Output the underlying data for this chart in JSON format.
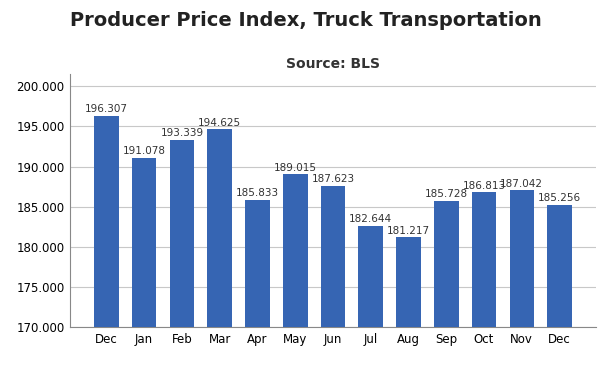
{
  "title": "Producer Price Index, Truck Transportation",
  "subtitle": "Source: BLS",
  "categories": [
    "Dec",
    "Jan",
    "Feb",
    "Mar",
    "Apr",
    "May",
    "Jun",
    "Jul",
    "Aug",
    "Sep",
    "Oct",
    "Nov",
    "Dec"
  ],
  "values": [
    196.307,
    191.078,
    193.339,
    194.625,
    185.833,
    189.015,
    187.623,
    182.644,
    181.217,
    185.728,
    186.813,
    187.042,
    185.256
  ],
  "bar_color": "#3665B3",
  "ylim": [
    170.0,
    201.5
  ],
  "bar_bottom": 170.0,
  "yticks": [
    170.0,
    175.0,
    180.0,
    185.0,
    190.0,
    195.0,
    200.0
  ],
  "background_color": "#ffffff",
  "grid_color": "#c8c8c8",
  "title_fontsize": 14,
  "subtitle_fontsize": 10,
  "label_fontsize": 7.5,
  "tick_fontsize": 8.5
}
